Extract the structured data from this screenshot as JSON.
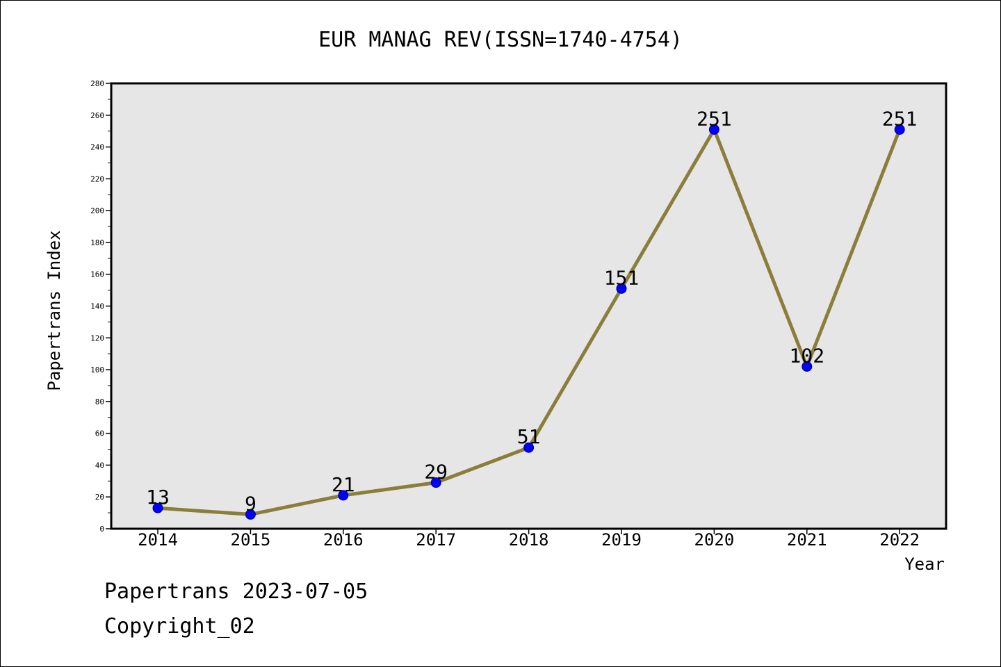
{
  "chart_data": {
    "type": "line",
    "title": "EUR MANAG REV(ISSN=1740-4754)",
    "xlabel": "Year",
    "ylabel": "Papertrans Index",
    "categories": [
      "2014",
      "2015",
      "2016",
      "2017",
      "2018",
      "2019",
      "2020",
      "2021",
      "2022"
    ],
    "values": [
      13,
      9,
      21,
      29,
      51,
      151,
      251,
      102,
      251
    ],
    "data_labels": [
      "13",
      "9",
      "21",
      "29",
      "51",
      "151",
      "251",
      "102",
      "251"
    ],
    "ylim": [
      0,
      280
    ],
    "yticks": [
      "0",
      "20",
      "40",
      "60",
      "80",
      "100",
      "120",
      "140",
      "160",
      "180",
      "200",
      "220",
      "240",
      "260",
      "280"
    ],
    "grid": false,
    "legend": "none",
    "colors": {
      "line": "#8B7D3A",
      "marker_fill": "#0000FF",
      "marker_edge": "#00008B",
      "plot_background": "#E6E6E6"
    }
  },
  "footer": {
    "line1": "Papertrans 2023-07-05",
    "line2": "Copyright_02"
  }
}
